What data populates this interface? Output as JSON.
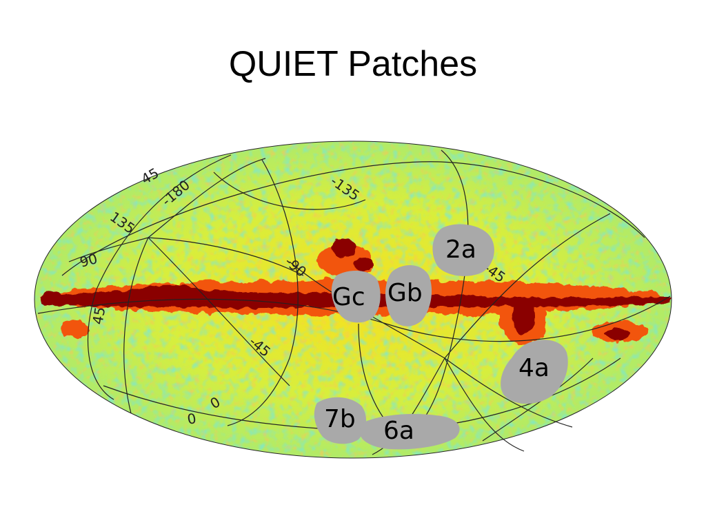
{
  "slide": {
    "title": "QUIET Patches"
  },
  "map": {
    "projection": "Mollweide",
    "colors": {
      "background": "#ffffff",
      "high_noise": "#2fd5e0",
      "mid": "#d8ee3c",
      "low": "#f7e01e",
      "galactic_outer": "#f2550e",
      "galactic_core": "#8a0000",
      "patch_fill": "#a9a9a9",
      "grid_line": "#222222"
    },
    "patches": [
      {
        "id": "patch-2a",
        "label": "2a"
      },
      {
        "id": "patch-gc",
        "label": "Gc"
      },
      {
        "id": "patch-gb",
        "label": "Gb"
      },
      {
        "id": "patch-4a",
        "label": "4a"
      },
      {
        "id": "patch-7b",
        "label": "7b"
      },
      {
        "id": "patch-6a",
        "label": "6a"
      }
    ],
    "grid_labels": [
      {
        "id": "grid-45-top",
        "text": "45"
      },
      {
        "id": "grid-180",
        "text": "-180"
      },
      {
        "id": "grid-135-left",
        "text": "135"
      },
      {
        "id": "grid-90-left",
        "text": "90"
      },
      {
        "id": "grid-45-left",
        "text": "45"
      },
      {
        "id": "grid-135-top",
        "text": "-135"
      },
      {
        "id": "grid-90-mid",
        "text": "-90"
      },
      {
        "id": "grid-45-right",
        "text": "-45"
      },
      {
        "id": "grid-45-low",
        "text": "-45"
      },
      {
        "id": "grid-0-a",
        "text": "0"
      },
      {
        "id": "grid-0-b",
        "text": "0"
      }
    ]
  }
}
